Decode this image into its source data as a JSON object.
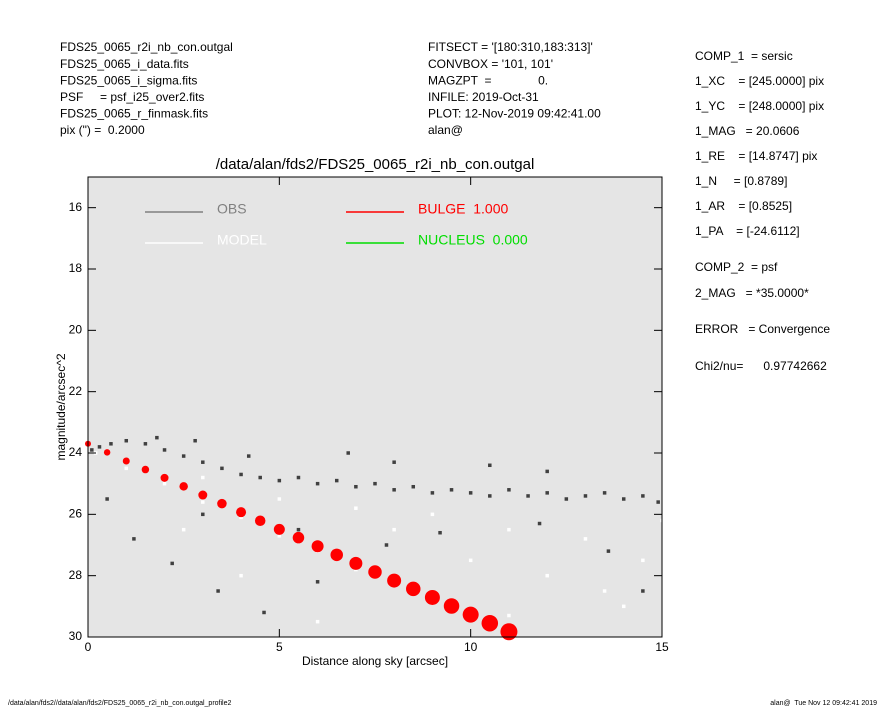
{
  "header_left": [
    "FDS25_0065_r2i_nb_con.outgal",
    "FDS25_0065_i_data.fits",
    "FDS25_0065_i_sigma.fits",
    "PSF     = psf_i25_over2.fits",
    "FDS25_0065_r_finmask.fits",
    "pix (\") =  0.2000"
  ],
  "header_mid": [
    "FITSECT = '[180:310,183:313]'",
    "CONVBOX = '101, 101'",
    "MAGZPT  =              0.",
    "INFILE: 2019-Oct-31",
    "PLOT: 12-Nov-2019 09:42:41.00",
    "alan@"
  ],
  "params": [
    "COMP_1  = sersic",
    "1_XC    = [245.0000] pix",
    "1_YC    = [248.0000] pix",
    "1_MAG   = 20.0606",
    "1_RE    = [14.8747] pix",
    "1_N     = [0.8789]",
    "1_AR    = [0.8525]",
    "1_PA    = [-24.6112]",
    "COMP_2  = psf",
    "2_MAG   = *35.0000*",
    "ERROR   = Convergence",
    "Chi2/nu=      0.97742662"
  ],
  "footer_left": "/data/alan/fds2//data/alan/fds2/FDS25_0065_r2i_nb_con.outgal_profile2",
  "footer_right": "alan@  Tue Nov 12 09:42:41 2019",
  "chart_data": {
    "type": "scatter",
    "title": "/data/alan/fds2/FDS25_0065_r2i_nb_con.outgal",
    "x_label": "Distance along sky [arcsec]",
    "y_label": "magnitude/arcsec^2",
    "xlim": [
      0,
      15
    ],
    "xticks": [
      0,
      5,
      10,
      15
    ],
    "ylim": [
      30,
      15
    ],
    "yticks": [
      16,
      18,
      20,
      22,
      24,
      26,
      28,
      30
    ],
    "series": [
      {
        "name": "MODEL",
        "color": "#ffffff",
        "x": [
          0.2,
          1,
          2,
          3,
          4,
          5,
          6,
          7,
          8,
          9,
          10,
          3,
          5,
          7,
          9,
          11,
          13,
          15,
          12,
          14,
          6,
          4,
          10,
          8,
          13.5,
          11,
          2.5,
          14.5
        ],
        "values": [
          24.0,
          24.5,
          25.0,
          25.6,
          26.1,
          26.7,
          27.2,
          27.8,
          28.3,
          28.9,
          29.4,
          24.8,
          25.5,
          25.8,
          26.0,
          26.5,
          26.8,
          26.2,
          28.0,
          29.0,
          29.5,
          28.0,
          27.5,
          26.5,
          28.5,
          29.3,
          26.5,
          27.5
        ]
      },
      {
        "name": "OBS",
        "color": "#808080",
        "marker_color": "#404040",
        "x": [
          0.1,
          0.3,
          0.6,
          1.0,
          1.5,
          2,
          2.5,
          3,
          3.5,
          4,
          4.5,
          5,
          5.5,
          6,
          6.5,
          7,
          7.5,
          8,
          8.5,
          9,
          9.5,
          10,
          10.5,
          11,
          11.5,
          12,
          12.5,
          13,
          13.5,
          14,
          14.5,
          14.9,
          0.5,
          1.2,
          2.2,
          3.4,
          4.6,
          6,
          7.8,
          9.2,
          11.8,
          13.6,
          14.5,
          5.5,
          3,
          8,
          12,
          6.8,
          10.5,
          4.2,
          2.8,
          1.8
        ],
        "values": [
          23.9,
          23.8,
          23.7,
          23.6,
          23.7,
          23.9,
          24.1,
          24.3,
          24.5,
          24.7,
          24.8,
          24.9,
          24.8,
          25.0,
          24.9,
          25.1,
          25.0,
          25.2,
          25.1,
          25.3,
          25.2,
          25.3,
          25.4,
          25.2,
          25.4,
          25.3,
          25.5,
          25.4,
          25.3,
          25.5,
          25.4,
          25.6,
          25.5,
          26.8,
          27.6,
          28.5,
          29.2,
          28.2,
          27.0,
          26.6,
          26.3,
          27.2,
          28.5,
          26.5,
          26.0,
          24.3,
          24.6,
          24.0,
          24.4,
          24.1,
          23.6,
          23.5
        ]
      },
      {
        "name": "BULGE  1.000",
        "color": "#ff0000",
        "x": [
          0,
          0.5,
          1,
          1.5,
          2,
          2.5,
          3,
          3.5,
          4,
          4.5,
          5,
          5.5,
          6,
          6.5,
          7,
          7.5,
          8,
          8.5,
          9,
          9.5,
          10,
          10.5,
          11
        ],
        "values": [
          23.7,
          23.98,
          24.26,
          24.54,
          24.81,
          25.09,
          25.37,
          25.65,
          25.93,
          26.21,
          26.49,
          26.76,
          27.04,
          27.32,
          27.6,
          27.88,
          28.16,
          28.43,
          28.71,
          28.99,
          29.27,
          29.55,
          29.83
        ]
      },
      {
        "name": "NUCLEUS  0.000",
        "color": "#00dd00",
        "x": [],
        "values": []
      }
    ]
  }
}
